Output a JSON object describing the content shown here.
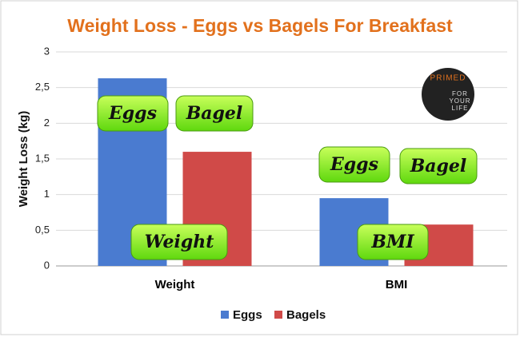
{
  "chart_data": {
    "type": "bar",
    "title": "Weight Loss - Eggs vs Bagels For Breakfast",
    "y_label": "Weight Loss (kg)",
    "categories": [
      "Weight",
      "BMI"
    ],
    "series": [
      {
        "name": "Eggs",
        "color": "#4a7bd0",
        "values": [
          2.63,
          0.95
        ]
      },
      {
        "name": "Bagels",
        "color": "#d04a48",
        "values": [
          1.6,
          0.58
        ]
      }
    ],
    "ylim": [
      0,
      3
    ],
    "yticks": [
      0,
      {
        "value": 0.5,
        "label": "0,5"
      },
      1,
      {
        "value": 1.5,
        "label": "1,5"
      },
      2,
      {
        "value": 2.5,
        "label": "2,5"
      },
      3
    ],
    "grid": true,
    "legend": "bottom",
    "annotations": [
      "Eggs",
      "Bagel",
      "Weight",
      "Eggs",
      "Bagel",
      "BMI"
    ],
    "logo_text": [
      "PRIMED",
      "FOR",
      "YOUR",
      "LIFE"
    ]
  }
}
